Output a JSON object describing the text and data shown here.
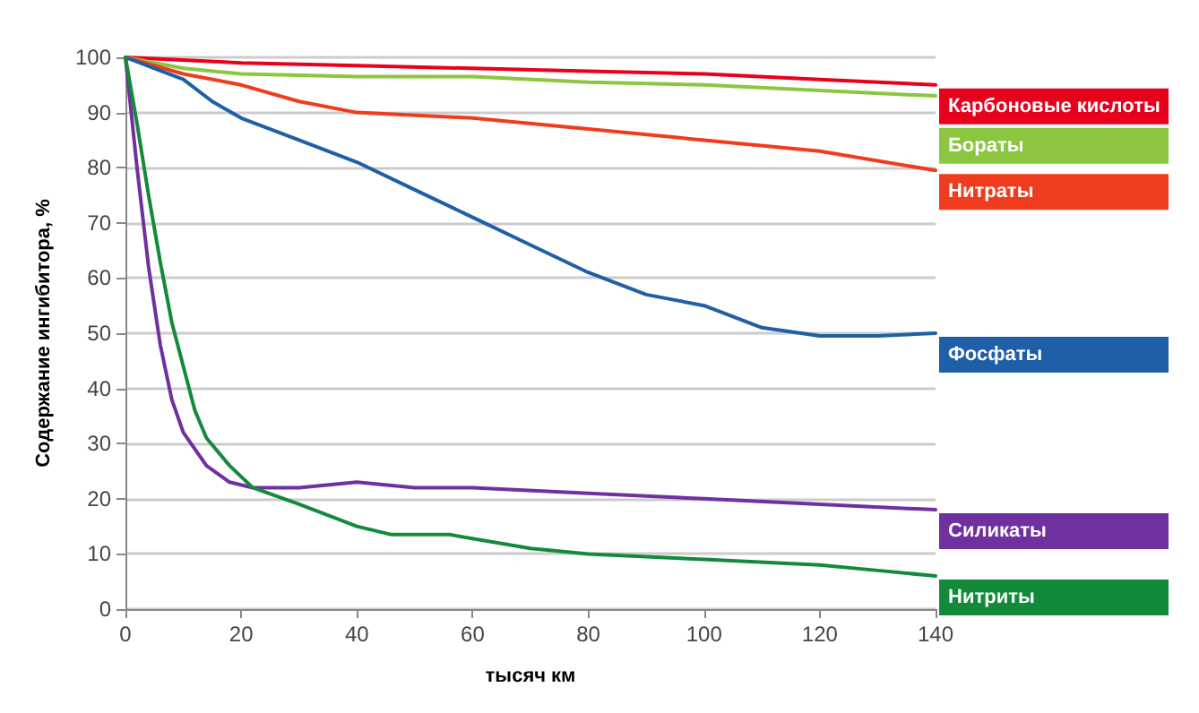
{
  "chart_data": {
    "type": "line",
    "xlabel": "тысяч км",
    "ylabel": "Содержание ингибитора, %",
    "xlim": [
      0,
      140
    ],
    "xticks": [
      0,
      20,
      40,
      60,
      80,
      100,
      120,
      140
    ],
    "ylim": [
      0,
      100
    ],
    "yticks": [
      0,
      10,
      20,
      30,
      40,
      50,
      60,
      70,
      80,
      90,
      100
    ],
    "grid": "y",
    "marker": "none",
    "line_style": "solid",
    "legend": false,
    "series": [
      {
        "name": "Карбоновые кислоты",
        "color": "#e8001c",
        "x": [
          0,
          20,
          40,
          60,
          80,
          100,
          120,
          140
        ],
        "values": [
          100,
          99,
          98.5,
          98,
          97.5,
          97,
          96,
          95
        ]
      },
      {
        "name": "Бораты",
        "color": "#8cc63f",
        "x": [
          0,
          10,
          20,
          40,
          60,
          80,
          100,
          120,
          140
        ],
        "values": [
          100,
          98,
          97,
          96.5,
          96.5,
          95.5,
          95,
          94,
          93
        ]
      },
      {
        "name": "Нитраты",
        "color": "#f03c1e",
        "x": [
          0,
          10,
          20,
          30,
          40,
          60,
          80,
          100,
          120,
          140
        ],
        "values": [
          100,
          97,
          95,
          92,
          90,
          89,
          87,
          85,
          83,
          79.5
        ]
      },
      {
        "name": "Фосфаты",
        "color": "#1f5fa8",
        "x": [
          0,
          5,
          10,
          15,
          20,
          30,
          40,
          50,
          60,
          70,
          80,
          90,
          100,
          110,
          120,
          130,
          140
        ],
        "values": [
          100,
          98,
          96,
          92,
          89,
          85,
          81,
          76,
          71,
          66,
          61,
          57,
          55,
          51,
          49.5,
          49.5,
          50
        ]
      },
      {
        "name": "Силикаты",
        "color": "#7030a0",
        "x": [
          0,
          2,
          4,
          6,
          8,
          10,
          14,
          18,
          22,
          30,
          40,
          50,
          60,
          80,
          100,
          120,
          140
        ],
        "values": [
          100,
          80,
          62,
          48,
          38,
          32,
          26,
          23,
          22,
          22,
          23,
          22,
          22,
          21,
          20,
          19,
          18
        ]
      },
      {
        "name": "Нитриты",
        "color": "#138a3a",
        "x": [
          0,
          2,
          4,
          6,
          8,
          10,
          12,
          14,
          18,
          22,
          30,
          40,
          46,
          56,
          70,
          80,
          100,
          120,
          130,
          140
        ],
        "values": [
          100,
          88,
          75,
          63,
          52,
          44,
          36,
          31,
          26,
          22,
          19,
          15,
          13.5,
          13.5,
          11,
          10,
          9,
          8,
          7,
          6
        ]
      }
    ]
  }
}
